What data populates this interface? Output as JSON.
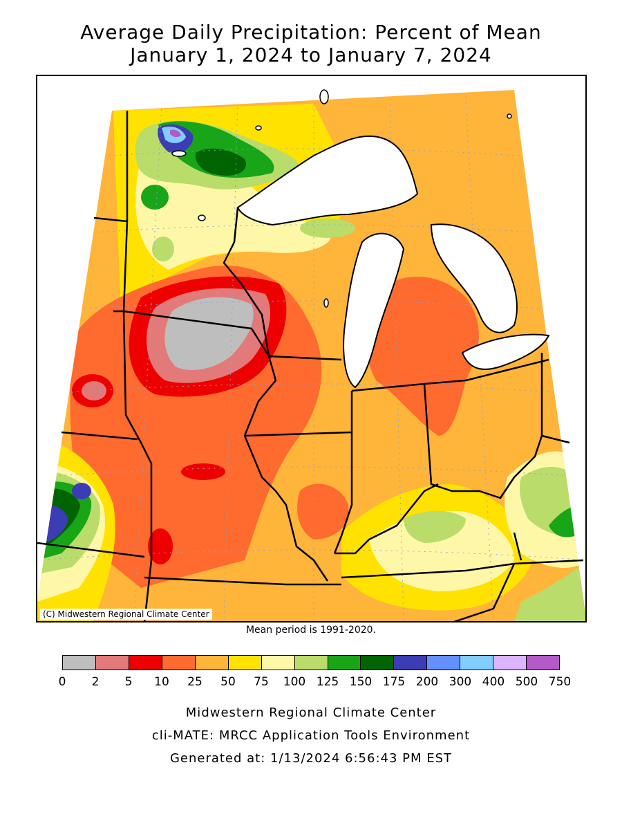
{
  "title": "Average Daily Precipitation: Percent of Mean",
  "subtitle": "January 1, 2024 to January 7, 2024",
  "copyright": "(C) Midwestern Regional Climate Center",
  "mean_period": "Mean period is 1991-2020.",
  "legend": {
    "colors": [
      "#bebebe",
      "#e27a7a",
      "#ee0000",
      "#ff6a2f",
      "#ffb43a",
      "#ffe200",
      "#fff7a8",
      "#b9dc6a",
      "#18a518",
      "#006400",
      "#3c3cb4",
      "#6490ff",
      "#82cdff",
      "#dcb4ff",
      "#b45ac8"
    ],
    "labels": [
      "0",
      "2",
      "5",
      "10",
      "25",
      "50",
      "75",
      "100",
      "125",
      "150",
      "175",
      "200",
      "300",
      "400",
      "500",
      "750"
    ]
  },
  "footer": {
    "line1": "Midwestern Regional Climate Center",
    "line2": "cli-MATE: MRCC Application Tools Environment",
    "line3": "Generated at: 1/13/2024 6:56:43 PM EST"
  }
}
